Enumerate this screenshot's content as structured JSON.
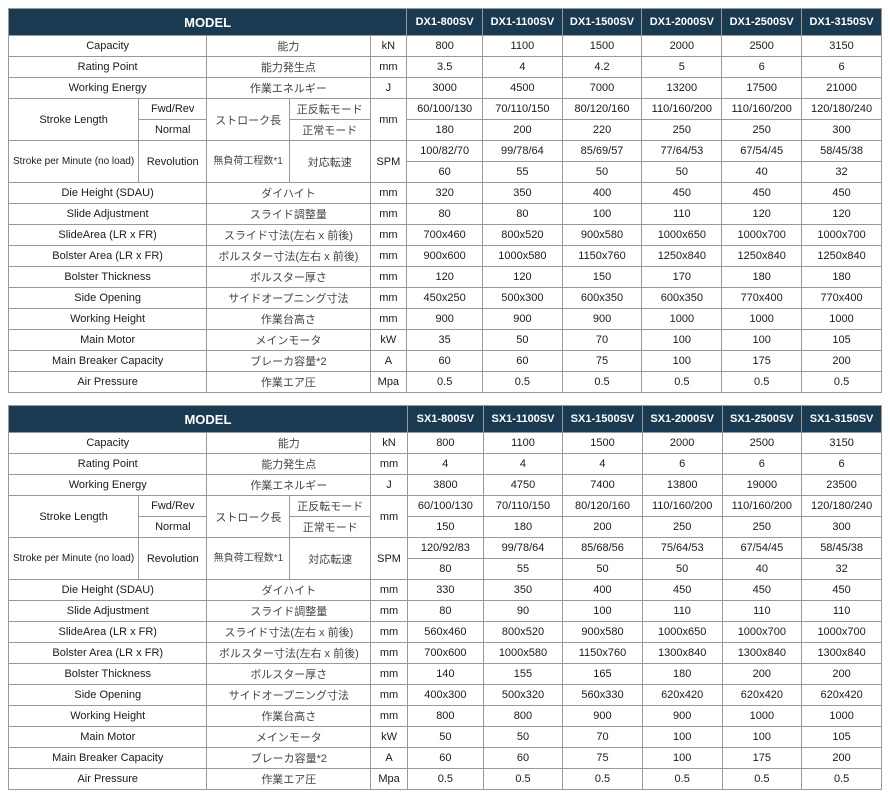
{
  "colors": {
    "headerBg": "#1a3a52",
    "headerText": "#ffffff",
    "border": "#999999"
  },
  "tables": [
    {
      "modelHeaderSpan": 4,
      "modelLabel": "MODEL",
      "columns": [
        "DX1-800SV",
        "DX1-1100SV",
        "DX1-1500SV",
        "DX1-2000SV",
        "DX1-2500SV",
        "DX1-3150SV"
      ],
      "rows": [
        {
          "type": "simple",
          "en": "Capacity",
          "jp": "能力",
          "unit": "kN",
          "vals": [
            "800",
            "1100",
            "1500",
            "2000",
            "2500",
            "3150"
          ]
        },
        {
          "type": "simple",
          "en": "Rating Point",
          "jp": "能力発生点",
          "unit": "mm",
          "vals": [
            "3.5",
            "4",
            "4.2",
            "5",
            "6",
            "6"
          ]
        },
        {
          "type": "simple",
          "en": "Working Energy",
          "jp": "作業エネルギー",
          "unit": "J",
          "vals": [
            "3000",
            "4500",
            "7000",
            "13200",
            "17500",
            "21000"
          ]
        },
        {
          "type": "stroke",
          "en": "Stroke Length",
          "jp": "ストローク長",
          "unit": "mm",
          "sub": [
            {
              "enSub": "Fwd/Rev",
              "jpSub": "正反転モード",
              "vals": [
                "60/100/130",
                "70/110/150",
                "80/120/160",
                "110/160/200",
                "110/160/200",
                "120/180/240"
              ]
            },
            {
              "enSub": "Normal",
              "jpSub": "正常モード",
              "vals": [
                "180",
                "200",
                "220",
                "250",
                "250",
                "300"
              ]
            }
          ]
        },
        {
          "type": "spm",
          "en": "Stroke per Minute (no load)",
          "enSub": "Revolution",
          "jp": "無負荷工程数*1",
          "jpSub": "対応転速",
          "unit": "SPM",
          "sub": [
            {
              "vals": [
                "100/82/70",
                "99/78/64",
                "85/69/57",
                "77/64/53",
                "67/54/45",
                "58/45/38"
              ]
            },
            {
              "vals": [
                "60",
                "55",
                "50",
                "50",
                "40",
                "32"
              ]
            }
          ]
        },
        {
          "type": "simple",
          "en": "Die Height  (SDAU)",
          "jp": "ダイハイト",
          "unit": "mm",
          "vals": [
            "320",
            "350",
            "400",
            "450",
            "450",
            "450"
          ]
        },
        {
          "type": "simple",
          "en": "Slide Adjustment",
          "jp": "スライド調整量",
          "unit": "mm",
          "vals": [
            "80",
            "80",
            "100",
            "110",
            "120",
            "120"
          ]
        },
        {
          "type": "simple",
          "en": "SlideArea  (LR x FR)",
          "jp": "スライド寸法(左右 x 前後)",
          "unit": "mm",
          "vals": [
            "700x460",
            "800x520",
            "900x580",
            "1000x650",
            "1000x700",
            "1000x700"
          ]
        },
        {
          "type": "simple",
          "en": "Bolster Area  (LR x FR)",
          "jp": "ボルスター寸法(左右 x 前後)",
          "unit": "mm",
          "vals": [
            "900x600",
            "1000x580",
            "1150x760",
            "1250x840",
            "1250x840",
            "1250x840"
          ]
        },
        {
          "type": "simple",
          "en": "Bolster Thickness",
          "jp": "ボルスター厚さ",
          "unit": "mm",
          "vals": [
            "120",
            "120",
            "150",
            "170",
            "180",
            "180"
          ]
        },
        {
          "type": "simple",
          "en": "Side Opening",
          "jp": "サイドオープニング寸法",
          "unit": "mm",
          "vals": [
            "450x250",
            "500x300",
            "600x350",
            "600x350",
            "770x400",
            "770x400"
          ]
        },
        {
          "type": "simple",
          "en": "Working Height",
          "jp": "作業台高さ",
          "unit": "mm",
          "vals": [
            "900",
            "900",
            "900",
            "1000",
            "1000",
            "1000"
          ]
        },
        {
          "type": "simple",
          "en": "Main Motor",
          "jp": "メインモータ",
          "unit": "kW",
          "vals": [
            "35",
            "50",
            "70",
            "100",
            "100",
            "105"
          ]
        },
        {
          "type": "simple",
          "en": "Main Breaker Capacity",
          "jp": "ブレーカ容量*2",
          "unit": "A",
          "vals": [
            "60",
            "60",
            "75",
            "100",
            "175",
            "200"
          ]
        },
        {
          "type": "simple",
          "en": "Air Pressure",
          "jp": "作業エア圧",
          "unit": "Mpa",
          "vals": [
            "0.5",
            "0.5",
            "0.5",
            "0.5",
            "0.5",
            "0.5"
          ]
        }
      ]
    },
    {
      "modelHeaderSpan": 4,
      "modelLabel": "MODEL",
      "columns": [
        "SX1-800SV",
        "SX1-1100SV",
        "SX1-1500SV",
        "SX1-2000SV",
        "SX1-2500SV",
        "SX1-3150SV"
      ],
      "rows": [
        {
          "type": "simple",
          "en": "Capacity",
          "jp": "能力",
          "unit": "kN",
          "vals": [
            "800",
            "1100",
            "1500",
            "2000",
            "2500",
            "3150"
          ]
        },
        {
          "type": "simple",
          "en": "Rating Point",
          "jp": "能力発生点",
          "unit": "mm",
          "vals": [
            "4",
            "4",
            "4",
            "6",
            "6",
            "6"
          ]
        },
        {
          "type": "simple",
          "en": "Working Energy",
          "jp": "作業エネルギー",
          "unit": "J",
          "vals": [
            "3800",
            "4750",
            "7400",
            "13800",
            "19000",
            "23500"
          ]
        },
        {
          "type": "stroke",
          "en": "Stroke Length",
          "jp": "ストローク長",
          "unit": "mm",
          "sub": [
            {
              "enSub": "Fwd/Rev",
              "jpSub": "正反転モード",
              "vals": [
                "60/100/130",
                "70/110/150",
                "80/120/160",
                "110/160/200",
                "110/160/200",
                "120/180/240"
              ]
            },
            {
              "enSub": "Normal",
              "jpSub": "正常モード",
              "vals": [
                "150",
                "180",
                "200",
                "250",
                "250",
                "300"
              ]
            }
          ]
        },
        {
          "type": "spm",
          "en": "Stroke per Minute (no load)",
          "enSub": "Revolution",
          "jp": "無負荷工程数*1",
          "jpSub": "対応転速",
          "unit": "SPM",
          "sub": [
            {
              "vals": [
                "120/92/83",
                "99/78/64",
                "85/68/56",
                "75/64/53",
                "67/54/45",
                "58/45/38"
              ]
            },
            {
              "vals": [
                "80",
                "55",
                "50",
                "50",
                "40",
                "32"
              ]
            }
          ]
        },
        {
          "type": "simple",
          "en": "Die Height  (SDAU)",
          "jp": "ダイハイト",
          "unit": "mm",
          "vals": [
            "330",
            "350",
            "400",
            "450",
            "450",
            "450"
          ]
        },
        {
          "type": "simple",
          "en": "Slide Adjustment",
          "jp": "スライド調整量",
          "unit": "mm",
          "vals": [
            "80",
            "90",
            "100",
            "110",
            "110",
            "110"
          ]
        },
        {
          "type": "simple",
          "en": "SlideArea  (LR x FR)",
          "jp": "スライド寸法(左右 x 前後)",
          "unit": "mm",
          "vals": [
            "560x460",
            "800x520",
            "900x580",
            "1000x650",
            "1000x700",
            "1000x700"
          ]
        },
        {
          "type": "simple",
          "en": "Bolster Area  (LR x FR)",
          "jp": "ボルスター寸法(左右 x 前後)",
          "unit": "mm",
          "vals": [
            "700x600",
            "1000x580",
            "1150x760",
            "1300x840",
            "1300x840",
            "1300x840"
          ]
        },
        {
          "type": "simple",
          "en": "Bolster Thickness",
          "jp": "ボルスター厚さ",
          "unit": "mm",
          "vals": [
            "140",
            "155",
            "165",
            "180",
            "200",
            "200"
          ]
        },
        {
          "type": "simple",
          "en": "Side Opening",
          "jp": "サイドオープニング寸法",
          "unit": "mm",
          "vals": [
            "400x300",
            "500x320",
            "560x330",
            "620x420",
            "620x420",
            "620x420"
          ]
        },
        {
          "type": "simple",
          "en": "Working Height",
          "jp": "作業台高さ",
          "unit": "mm",
          "vals": [
            "800",
            "800",
            "900",
            "900",
            "1000",
            "1000"
          ]
        },
        {
          "type": "simple",
          "en": "Main Motor",
          "jp": "メインモータ",
          "unit": "kW",
          "vals": [
            "50",
            "50",
            "70",
            "100",
            "100",
            "105"
          ]
        },
        {
          "type": "simple",
          "en": "Main Breaker Capacity",
          "jp": "ブレーカ容量*2",
          "unit": "A",
          "vals": [
            "60",
            "60",
            "75",
            "100",
            "175",
            "200"
          ]
        },
        {
          "type": "simple",
          "en": "Air Pressure",
          "jp": "作業エア圧",
          "unit": "Mpa",
          "vals": [
            "0.5",
            "0.5",
            "0.5",
            "0.5",
            "0.5",
            "0.5"
          ]
        }
      ]
    }
  ]
}
